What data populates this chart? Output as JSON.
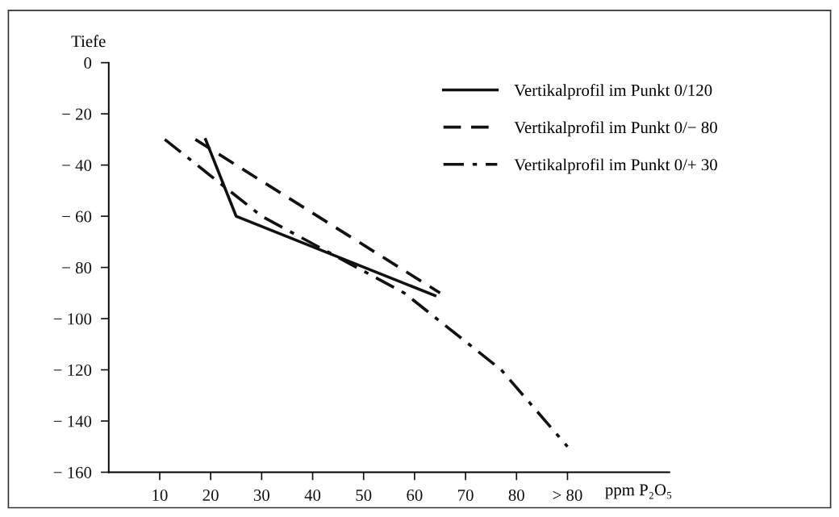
{
  "chart_data": {
    "type": "line",
    "xlabel": "ppm P₂O₅",
    "ylabel": "Tiefe",
    "xlim": [
      0,
      110
    ],
    "ylim": [
      -160,
      0
    ],
    "xticks": [
      10,
      20,
      30,
      40,
      50,
      60,
      70,
      80,
      {
        "value": 90,
        "label": "> 80"
      }
    ],
    "yticks": [
      0,
      {
        "value": -20,
        "label": "− 20"
      },
      {
        "value": -40,
        "label": "− 40"
      },
      {
        "value": -60,
        "label": "− 60"
      },
      {
        "value": -80,
        "label": "− 80"
      },
      {
        "value": -100,
        "label": "− 100"
      },
      {
        "value": -120,
        "label": "− 120"
      },
      {
        "value": -140,
        "label": "− 140"
      },
      {
        "value": -160,
        "label": "− 160"
      }
    ],
    "grid": false,
    "legend": "top right",
    "marker": "none",
    "series": [
      {
        "name": "Vertikalprofil im Punkt 0/120",
        "color": "#111111",
        "line_style": "solid",
        "x": [
          19,
          25,
          64
        ],
        "values": [
          -30,
          -60,
          -91
        ]
      },
      {
        "name": "Vertikalprofil im Punkt 0/− 80",
        "color": "#111111",
        "line_style": "dashed",
        "x": [
          17,
          65
        ],
        "values": [
          -30,
          -90
        ]
      },
      {
        "name": "Vertikalprofil im Punkt 0/+ 30",
        "color": "#111111",
        "line_style": "dashdot",
        "x": [
          11,
          30,
          58,
          77,
          90
        ],
        "values": [
          -30,
          -60,
          -90,
          -120,
          -150
        ]
      }
    ]
  }
}
